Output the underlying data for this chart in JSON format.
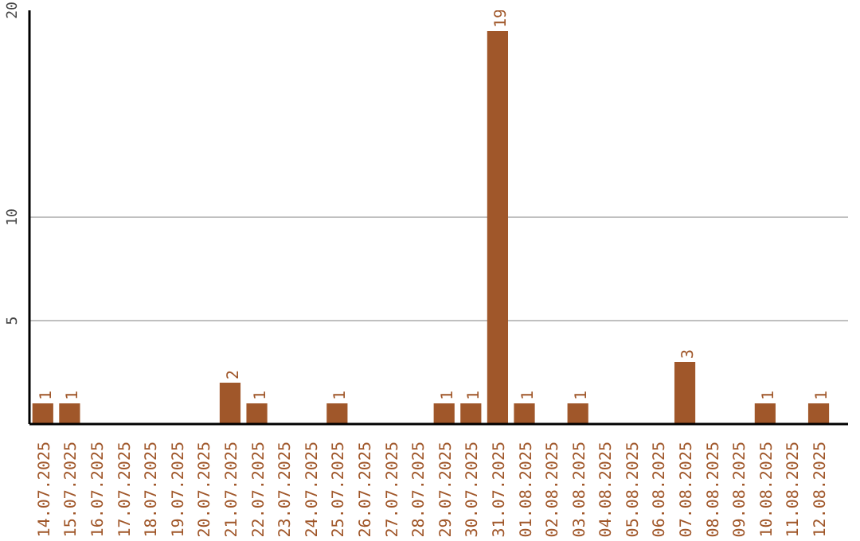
{
  "chart_data": {
    "type": "bar",
    "categories": [
      "14.07.2025",
      "15.07.2025",
      "16.07.2025",
      "17.07.2025",
      "18.07.2025",
      "19.07.2025",
      "20.07.2025",
      "21.07.2025",
      "22.07.2025",
      "23.07.2025",
      "24.07.2025",
      "25.07.2025",
      "26.07.2025",
      "27.07.2025",
      "28.07.2025",
      "29.07.2025",
      "30.07.2025",
      "31.07.2025",
      "01.08.2025",
      "02.08.2025",
      "03.08.2025",
      "04.08.2025",
      "05.08.2025",
      "06.08.2025",
      "07.08.2025",
      "08.08.2025",
      "09.08.2025",
      "10.08.2025",
      "11.08.2025",
      "12.08.2025"
    ],
    "values": [
      1,
      1,
      0,
      0,
      0,
      0,
      0,
      2,
      1,
      0,
      0,
      1,
      0,
      0,
      0,
      1,
      1,
      19,
      1,
      0,
      1,
      0,
      0,
      0,
      3,
      0,
      0,
      1,
      0,
      1
    ],
    "value_labels": [
      "1",
      "1",
      null,
      null,
      null,
      null,
      null,
      "2",
      "1",
      null,
      null,
      "1",
      null,
      null,
      null,
      "1",
      "1",
      "19",
      "1",
      null,
      "1",
      null,
      null,
      null,
      "3",
      null,
      null,
      "1",
      null,
      "1"
    ],
    "color": "#a0572a",
    "ylim": [
      0,
      20
    ],
    "yticks": [
      5,
      10,
      20
    ],
    "grid": "y"
  }
}
